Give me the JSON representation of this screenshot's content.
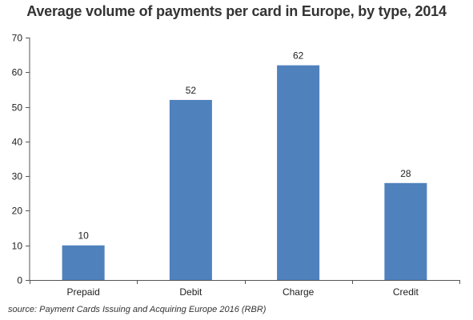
{
  "chart_data": {
    "type": "bar",
    "title": "Average volume of payments per card in Europe, by type, 2014",
    "categories": [
      "Prepaid",
      "Debit",
      "Charge",
      "Credit"
    ],
    "values": [
      10,
      52,
      62,
      28
    ],
    "data_labels": [
      "10",
      "52",
      "62",
      "28"
    ],
    "xlabel": "",
    "ylabel": "",
    "ylim": [
      0,
      70
    ],
    "yticks": [
      0,
      10,
      20,
      30,
      40,
      50,
      60,
      70
    ],
    "grid": false,
    "legend": "none",
    "bar_color": "#4f81bd",
    "source": "source: Payment Cards Issuing and Acquiring Europe 2016 (RBR)"
  }
}
